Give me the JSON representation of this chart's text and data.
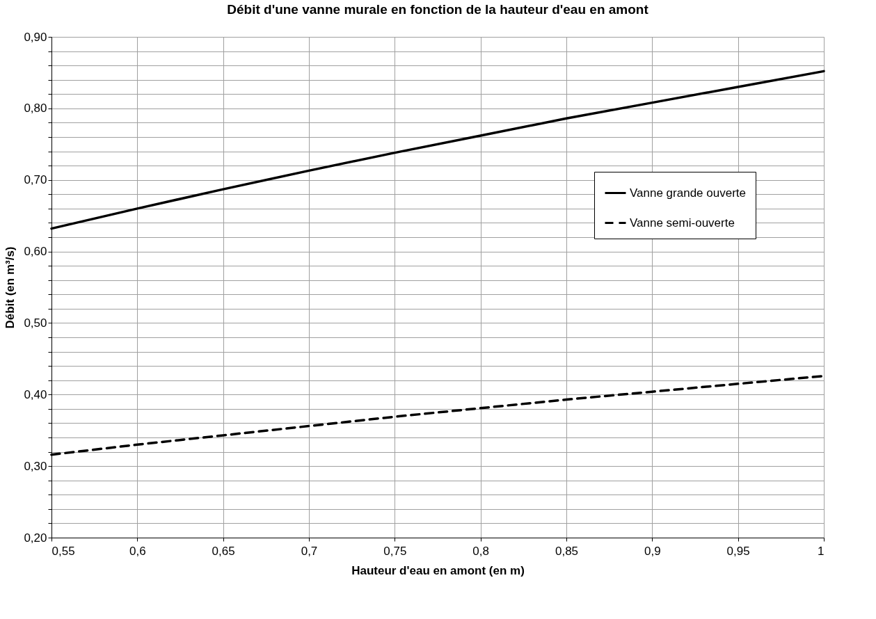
{
  "chart_data": {
    "type": "line",
    "title": "Débit d'une vanne murale en fonction de la hauteur d'eau en amont",
    "xlabel": "Hauteur d'eau en amont (en m)",
    "ylabel": "Débit (en m³/s)",
    "x": [
      0.55,
      0.6,
      0.65,
      0.7,
      0.75,
      0.8,
      0.85,
      0.9,
      0.95,
      1.0
    ],
    "series": [
      {
        "name": "Vanne grande ouverte",
        "color": "#000000",
        "line_style": "solid",
        "values": [
          0.632,
          0.66,
          0.687,
          0.713,
          0.738,
          0.762,
          0.786,
          0.808,
          0.83,
          0.852
        ]
      },
      {
        "name": "Vanne semi-ouverte",
        "color": "#000000",
        "line_style": "dashed",
        "values": [
          0.316,
          0.33,
          0.343,
          0.356,
          0.369,
          0.381,
          0.393,
          0.404,
          0.415,
          0.426
        ]
      }
    ],
    "xlim": [
      0.55,
      1.0
    ],
    "xticks": [
      {
        "value": 0.55,
        "label": "0,55"
      },
      {
        "value": 0.6,
        "label": "0,6"
      },
      {
        "value": 0.65,
        "label": "0,65"
      },
      {
        "value": 0.7,
        "label": "0,7"
      },
      {
        "value": 0.75,
        "label": "0,75"
      },
      {
        "value": 0.8,
        "label": "0,8"
      },
      {
        "value": 0.85,
        "label": "0,85"
      },
      {
        "value": 0.9,
        "label": "0,9"
      },
      {
        "value": 0.95,
        "label": "0,95"
      },
      {
        "value": 1.0,
        "label": "1"
      }
    ],
    "ylim": [
      0.2,
      0.9
    ],
    "yticks": [
      {
        "value": 0.2,
        "label": "0,20"
      },
      {
        "value": 0.22,
        "label": null
      },
      {
        "value": 0.24,
        "label": null
      },
      {
        "value": 0.26,
        "label": null
      },
      {
        "value": 0.28,
        "label": null
      },
      {
        "value": 0.3,
        "label": "0,30"
      },
      {
        "value": 0.32,
        "label": null
      },
      {
        "value": 0.34,
        "label": null
      },
      {
        "value": 0.36,
        "label": null
      },
      {
        "value": 0.38,
        "label": null
      },
      {
        "value": 0.4,
        "label": "0,40"
      },
      {
        "value": 0.42,
        "label": null
      },
      {
        "value": 0.44,
        "label": null
      },
      {
        "value": 0.46,
        "label": null
      },
      {
        "value": 0.48,
        "label": null
      },
      {
        "value": 0.5,
        "label": "0,50"
      },
      {
        "value": 0.52,
        "label": null
      },
      {
        "value": 0.54,
        "label": null
      },
      {
        "value": 0.56,
        "label": null
      },
      {
        "value": 0.58,
        "label": null
      },
      {
        "value": 0.6,
        "label": "0,60"
      },
      {
        "value": 0.62,
        "label": null
      },
      {
        "value": 0.64,
        "label": null
      },
      {
        "value": 0.66,
        "label": null
      },
      {
        "value": 0.68,
        "label": null
      },
      {
        "value": 0.7,
        "label": "0,70"
      },
      {
        "value": 0.72,
        "label": null
      },
      {
        "value": 0.74,
        "label": null
      },
      {
        "value": 0.76,
        "label": null
      },
      {
        "value": 0.78,
        "label": null
      },
      {
        "value": 0.8,
        "label": "0,80"
      },
      {
        "value": 0.82,
        "label": null
      },
      {
        "value": 0.84,
        "label": null
      },
      {
        "value": 0.86,
        "label": null
      },
      {
        "value": 0.88,
        "label": null
      },
      {
        "value": 0.9,
        "label": "0,90"
      }
    ],
    "grid": true,
    "legend": "right",
    "marker": "none"
  }
}
